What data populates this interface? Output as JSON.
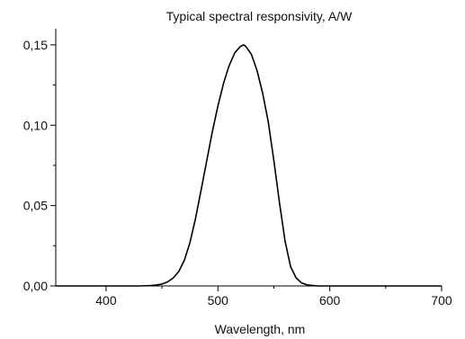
{
  "chart_data": {
    "type": "line",
    "title": "Typical spectral responsivity, A/W",
    "xlabel": "Wavelength, nm",
    "ylabel": "",
    "xlim": [
      355,
      700
    ],
    "ylim": [
      0,
      0.16
    ],
    "x_ticks": [
      400,
      500,
      600,
      700
    ],
    "x_tick_labels": [
      "400",
      "500",
      "600",
      "700"
    ],
    "y_ticks": [
      0,
      0.05,
      0.1,
      0.15
    ],
    "y_tick_labels": [
      "0,00",
      "0,05",
      "0,10",
      "0,15"
    ],
    "grid": false,
    "legend": "none",
    "line_color": "#000000",
    "series": [
      {
        "x": [
          355,
          380,
          400,
          420,
          430,
          440,
          445,
          450,
          455,
          460,
          465,
          470,
          475,
          480,
          485,
          490,
          495,
          500,
          505,
          510,
          515,
          520,
          523,
          525,
          530,
          535,
          540,
          545,
          550,
          555,
          560,
          565,
          570,
          575,
          580,
          585,
          590,
          600,
          620,
          650,
          700
        ],
        "values": [
          0,
          0,
          0,
          0,
          0,
          0.0003,
          0.0006,
          0.0012,
          0.0025,
          0.005,
          0.009,
          0.016,
          0.027,
          0.042,
          0.06,
          0.078,
          0.096,
          0.112,
          0.126,
          0.137,
          0.145,
          0.149,
          0.15,
          0.149,
          0.144,
          0.134,
          0.12,
          0.102,
          0.078,
          0.052,
          0.028,
          0.012,
          0.005,
          0.0018,
          0.0006,
          0.0002,
          0,
          0,
          0,
          0,
          0
        ]
      }
    ]
  }
}
